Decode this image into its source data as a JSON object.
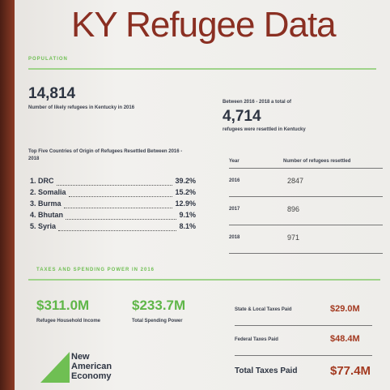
{
  "header": {
    "title": "KY Refugee Data"
  },
  "population": {
    "heading": "POPULATION",
    "likely": {
      "value": "14,814",
      "label": "Number of likely refugees in Kentucky in 2016"
    },
    "resettled": {
      "intro": "Between 2016 - 2018 a total of",
      "value": "4,714",
      "label": "refugees were resettled in Kentucky"
    }
  },
  "countries": {
    "heading": "Top Five Countries of Origin of Refugees Resettled Between 2016 - 2018",
    "rows": [
      [
        "1. DRC",
        "39.2%"
      ],
      [
        "2. Somalia",
        "15.2%"
      ],
      [
        "3. Burma",
        "12.9%"
      ],
      [
        "4. Bhutan",
        "9.1%"
      ],
      [
        "5. Syria",
        "8.1%"
      ]
    ]
  },
  "table": {
    "header": [
      "Year",
      "Number of refugees resettled"
    ],
    "rows": [
      [
        "2016",
        "2847"
      ],
      [
        "2017",
        "896"
      ],
      [
        "2018",
        "971"
      ]
    ]
  },
  "taxes": {
    "heading": "TAXES AND SPENDING POWER IN 2016",
    "income": {
      "value": "$311.0M",
      "label": "Refugee Household Income"
    },
    "spending": {
      "value": "$233.7M",
      "label": "Total Spending Power"
    },
    "rows": [
      [
        "State & Local Taxes Paid",
        "$29.0M"
      ],
      [
        "Federal Taxes Paid",
        "$48.4M"
      ],
      [
        "Total Taxes Paid",
        "$77.4M"
      ]
    ]
  },
  "logo": {
    "text": "New American Economy"
  }
}
